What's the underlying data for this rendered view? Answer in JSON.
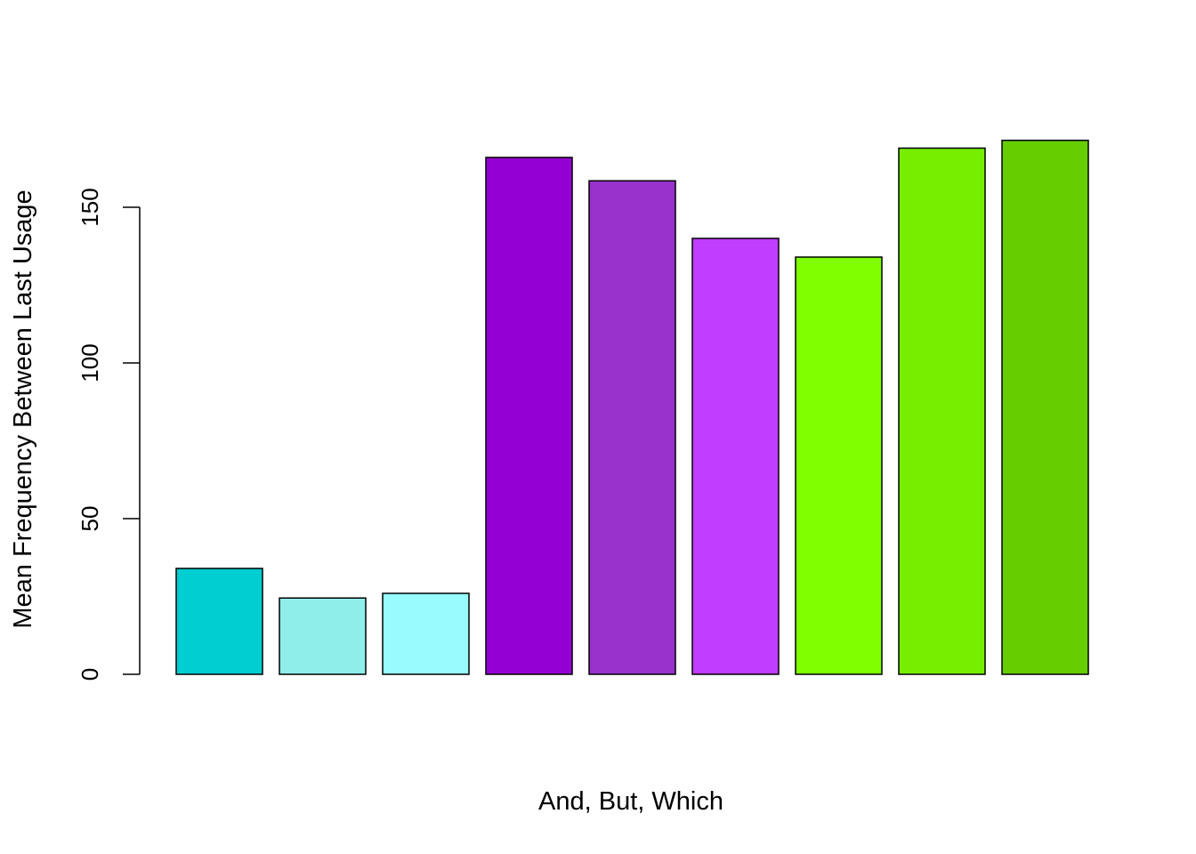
{
  "chart_data": {
    "type": "bar",
    "title": "",
    "xlabel": "And, But, Which",
    "ylabel": "Mean Frequency Between Last Usage",
    "ylim": [
      0,
      175
    ],
    "yticks": [
      0,
      50,
      100,
      150
    ],
    "grid": false,
    "legend": "none",
    "values": [
      34,
      24.5,
      26,
      166,
      158.5,
      140,
      134,
      169,
      171.5
    ],
    "colors": [
      "#00CED1",
      "#8FEEEA",
      "#98FCFF",
      "#9400D3",
      "#9932CC",
      "#BF3EFF",
      "#7FFF00",
      "#76EE00",
      "#66CD00"
    ]
  }
}
